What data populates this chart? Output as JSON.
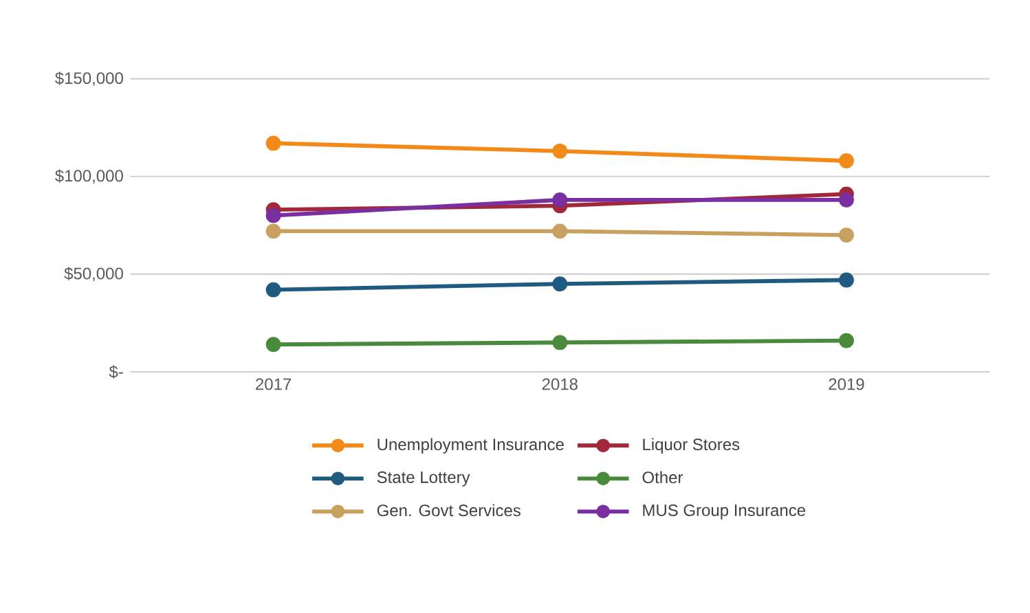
{
  "chart_data": {
    "type": "line",
    "categories": [
      "2017",
      "2018",
      "2019"
    ],
    "series": [
      {
        "name": "Unemployment Insurance",
        "color": "#f28a1a",
        "values": [
          117000,
          113000,
          108000
        ]
      },
      {
        "name": "Liquor Stores",
        "color": "#a0283a",
        "values": [
          83000,
          85000,
          91000
        ]
      },
      {
        "name": "State Lottery",
        "color": "#1f5a80",
        "values": [
          42000,
          45000,
          47000
        ]
      },
      {
        "name": "Other",
        "color": "#4a8a3c",
        "values": [
          14000,
          15000,
          16000
        ]
      },
      {
        "name": "Gen. Govt Services",
        "color": "#c8a060",
        "values": [
          72000,
          72000,
          70000
        ]
      },
      {
        "name": "MUS Group Insurance",
        "color": "#7a2fa0",
        "values": [
          80000,
          88000,
          88000
        ]
      }
    ],
    "ylim": [
      0,
      150000
    ],
    "yticks": [
      {
        "value": 0,
        "label": "$-"
      },
      {
        "value": 50000,
        "label": "$50,000"
      },
      {
        "value": 100000,
        "label": "$100,000"
      },
      {
        "value": 150000,
        "label": "$150,000"
      }
    ],
    "grid": "y",
    "legend": "bottom",
    "marker": "circle",
    "line_style": "solid"
  }
}
